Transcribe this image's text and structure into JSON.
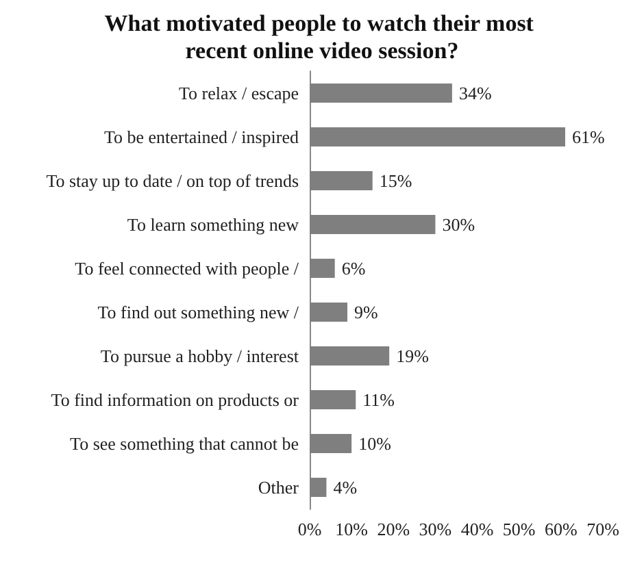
{
  "chart_data": {
    "type": "bar",
    "orientation": "horizontal",
    "title": "What motivated people to watch their most recent online video session?",
    "categories": [
      "To relax / escape",
      "To be entertained / inspired",
      "To stay up to date / on top of trends",
      "To learn something new",
      "To feel connected with people /",
      "To find out something new /",
      "To pursue a hobby / interest",
      "To find information on products or",
      "To see something that cannot be",
      "Other"
    ],
    "values": [
      34,
      61,
      15,
      30,
      6,
      9,
      19,
      11,
      10,
      4
    ],
    "value_labels": [
      "34%",
      "61%",
      "15%",
      "30%",
      "6%",
      "9%",
      "19%",
      "11%",
      "10%",
      "4%"
    ],
    "color": "#7f7f7f",
    "xlim": [
      0,
      70
    ],
    "xticks": [
      {
        "value": 0,
        "label": "0%"
      },
      {
        "value": 10,
        "label": "10%"
      },
      {
        "value": 20,
        "label": "20%"
      },
      {
        "value": 30,
        "label": "30%"
      },
      {
        "value": 40,
        "label": "40%"
      },
      {
        "value": 50,
        "label": "50%"
      },
      {
        "value": 60,
        "label": "60%"
      },
      {
        "value": 70,
        "label": "70%"
      }
    ],
    "grid": false
  }
}
